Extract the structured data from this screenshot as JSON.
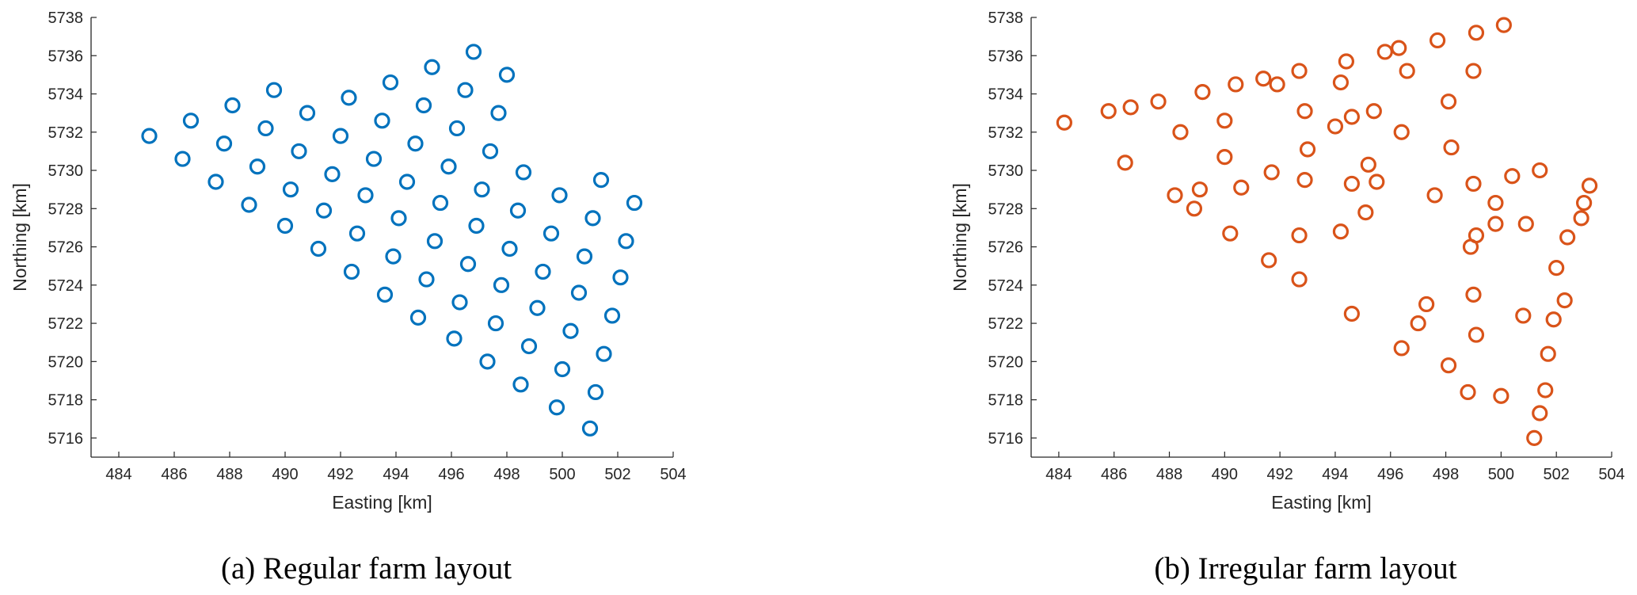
{
  "chart_data": [
    {
      "type": "scatter",
      "caption": "(a) Regular farm layout",
      "xlabel": "Easting [km]",
      "ylabel": "Northing [km]",
      "xlim": [
        483,
        504
      ],
      "ylim": [
        5715,
        5738
      ],
      "xticks": [
        484,
        486,
        488,
        490,
        492,
        494,
        496,
        498,
        500,
        502,
        504
      ],
      "yticks": [
        5716,
        5718,
        5720,
        5722,
        5724,
        5726,
        5728,
        5730,
        5732,
        5734,
        5736,
        5738
      ],
      "grid": false,
      "marker": "open-circle",
      "color": "#0072BD",
      "points": [
        [
          485.1,
          5731.8
        ],
        [
          486.6,
          5732.6
        ],
        [
          488.1,
          5733.4
        ],
        [
          489.6,
          5734.2
        ],
        [
          486.3,
          5730.6
        ],
        [
          487.8,
          5731.4
        ],
        [
          489.3,
          5732.2
        ],
        [
          490.8,
          5733.0
        ],
        [
          492.3,
          5733.8
        ],
        [
          493.8,
          5734.6
        ],
        [
          495.3,
          5735.4
        ],
        [
          496.8,
          5736.2
        ],
        [
          487.5,
          5729.4
        ],
        [
          489.0,
          5730.2
        ],
        [
          490.5,
          5731.0
        ],
        [
          492.0,
          5731.8
        ],
        [
          493.5,
          5732.6
        ],
        [
          495.0,
          5733.4
        ],
        [
          496.5,
          5734.2
        ],
        [
          498.0,
          5735.0
        ],
        [
          488.7,
          5728.2
        ],
        [
          490.2,
          5729.0
        ],
        [
          491.7,
          5729.8
        ],
        [
          493.2,
          5730.6
        ],
        [
          494.7,
          5731.4
        ],
        [
          496.2,
          5732.2
        ],
        [
          497.7,
          5733.0
        ],
        [
          490.0,
          5727.1
        ],
        [
          491.4,
          5727.9
        ],
        [
          492.9,
          5728.7
        ],
        [
          494.4,
          5729.4
        ],
        [
          495.9,
          5730.2
        ],
        [
          497.4,
          5731.0
        ],
        [
          491.2,
          5725.9
        ],
        [
          492.6,
          5726.7
        ],
        [
          494.1,
          5727.5
        ],
        [
          495.6,
          5728.3
        ],
        [
          497.1,
          5729.0
        ],
        [
          498.6,
          5729.9
        ],
        [
          492.4,
          5724.7
        ],
        [
          493.9,
          5725.5
        ],
        [
          495.4,
          5726.3
        ],
        [
          496.9,
          5727.1
        ],
        [
          498.4,
          5727.9
        ],
        [
          499.9,
          5728.7
        ],
        [
          501.4,
          5729.5
        ],
        [
          493.6,
          5723.5
        ],
        [
          495.1,
          5724.3
        ],
        [
          496.6,
          5725.1
        ],
        [
          498.1,
          5725.9
        ],
        [
          499.6,
          5726.7
        ],
        [
          501.1,
          5727.5
        ],
        [
          502.6,
          5728.3
        ],
        [
          494.8,
          5722.3
        ],
        [
          496.3,
          5723.1
        ],
        [
          497.8,
          5724.0
        ],
        [
          499.3,
          5724.7
        ],
        [
          500.8,
          5725.5
        ],
        [
          502.3,
          5726.3
        ],
        [
          496.1,
          5721.2
        ],
        [
          497.6,
          5722.0
        ],
        [
          499.1,
          5722.8
        ],
        [
          500.6,
          5723.6
        ],
        [
          502.1,
          5724.4
        ],
        [
          497.3,
          5720.0
        ],
        [
          498.8,
          5720.8
        ],
        [
          500.3,
          5721.6
        ],
        [
          501.8,
          5722.4
        ],
        [
          498.5,
          5718.8
        ],
        [
          500.0,
          5719.6
        ],
        [
          501.5,
          5720.4
        ],
        [
          499.8,
          5717.6
        ],
        [
          501.2,
          5718.4
        ],
        [
          501.0,
          5716.5
        ]
      ]
    },
    {
      "type": "scatter",
      "caption": "(b) Irregular farm layout",
      "xlabel": "Easting [km]",
      "ylabel": "Northing [km]",
      "xlim": [
        483,
        504
      ],
      "ylim": [
        5715,
        5738
      ],
      "xticks": [
        484,
        486,
        488,
        490,
        492,
        494,
        496,
        498,
        500,
        502,
        504
      ],
      "yticks": [
        5716,
        5718,
        5720,
        5722,
        5724,
        5726,
        5728,
        5730,
        5732,
        5734,
        5736,
        5738
      ],
      "grid": false,
      "marker": "open-circle",
      "color": "#D95319",
      "points": [
        [
          484.2,
          5732.5
        ],
        [
          485.8,
          5733.1
        ],
        [
          486.6,
          5733.3
        ],
        [
          487.6,
          5733.6
        ],
        [
          489.2,
          5734.1
        ],
        [
          490.4,
          5734.5
        ],
        [
          491.4,
          5734.8
        ],
        [
          491.9,
          5734.5
        ],
        [
          492.7,
          5735.2
        ],
        [
          494.2,
          5734.6
        ],
        [
          494.4,
          5735.7
        ],
        [
          495.8,
          5736.2
        ],
        [
          496.3,
          5736.4
        ],
        [
          496.6,
          5735.2
        ],
        [
          497.7,
          5736.8
        ],
        [
          499.0,
          5735.2
        ],
        [
          499.1,
          5737.2
        ],
        [
          500.1,
          5737.6
        ],
        [
          486.4,
          5730.4
        ],
        [
          488.4,
          5732.0
        ],
        [
          490.0,
          5732.6
        ],
        [
          492.9,
          5733.1
        ],
        [
          494.0,
          5732.3
        ],
        [
          494.6,
          5732.8
        ],
        [
          495.4,
          5733.1
        ],
        [
          496.4,
          5732.0
        ],
        [
          498.1,
          5733.6
        ],
        [
          493.0,
          5731.1
        ],
        [
          490.0,
          5730.7
        ],
        [
          491.7,
          5729.9
        ],
        [
          495.2,
          5730.3
        ],
        [
          498.2,
          5731.2
        ],
        [
          488.2,
          5728.7
        ],
        [
          488.9,
          5728.0
        ],
        [
          489.1,
          5729.0
        ],
        [
          490.6,
          5729.1
        ],
        [
          492.9,
          5729.5
        ],
        [
          494.6,
          5729.3
        ],
        [
          495.5,
          5729.4
        ],
        [
          497.6,
          5728.7
        ],
        [
          499.0,
          5729.3
        ],
        [
          499.8,
          5728.3
        ],
        [
          500.4,
          5729.7
        ],
        [
          501.4,
          5730.0
        ],
        [
          503.2,
          5729.2
        ],
        [
          503.0,
          5728.3
        ],
        [
          502.9,
          5727.5
        ],
        [
          495.1,
          5727.8
        ],
        [
          490.2,
          5726.7
        ],
        [
          492.7,
          5726.6
        ],
        [
          494.2,
          5726.8
        ],
        [
          498.9,
          5726.0
        ],
        [
          499.1,
          5726.6
        ],
        [
          499.8,
          5727.2
        ],
        [
          500.9,
          5727.2
        ],
        [
          502.4,
          5726.5
        ],
        [
          491.6,
          5725.3
        ],
        [
          492.7,
          5724.3
        ],
        [
          502.0,
          5724.9
        ],
        [
          494.6,
          5722.5
        ],
        [
          497.3,
          5723.0
        ],
        [
          497.0,
          5722.0
        ],
        [
          499.0,
          5723.5
        ],
        [
          499.1,
          5721.4
        ],
        [
          500.8,
          5722.4
        ],
        [
          502.3,
          5723.2
        ],
        [
          501.9,
          5722.2
        ],
        [
          496.4,
          5720.7
        ],
        [
          498.1,
          5719.8
        ],
        [
          501.7,
          5720.4
        ],
        [
          498.8,
          5718.4
        ],
        [
          500.0,
          5718.2
        ],
        [
          501.6,
          5718.5
        ],
        [
          501.4,
          5717.3
        ],
        [
          501.2,
          5716.0
        ]
      ]
    }
  ]
}
